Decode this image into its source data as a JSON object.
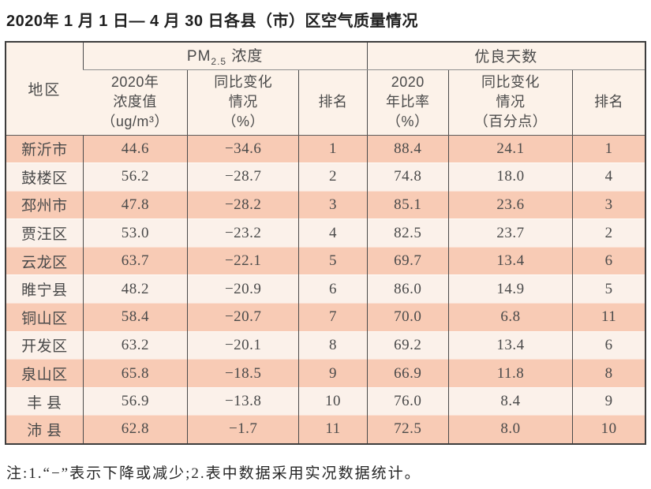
{
  "title": "2020年 1 月 1 日— 4 月 30 日各县（市）区空气质量情况",
  "table": {
    "region_header": "地区",
    "pm_group": {
      "prefix": "PM",
      "sub": "2.5",
      "suffix": "浓度"
    },
    "good_days_group": "优良天数",
    "sub_headers": [
      "2020年\n浓度值\n（ug/m³）",
      "同比变化\n情况\n（%）",
      "排名",
      "2020\n年比率\n（%）",
      "同比变化\n情况\n（百分点）",
      "排名"
    ],
    "rows": [
      [
        "新沂市",
        "44.6",
        "−34.6",
        "1",
        "88.4",
        "24.1",
        "1"
      ],
      [
        "鼓楼区",
        "56.2",
        "−28.7",
        "2",
        "74.8",
        "18.0",
        "4"
      ],
      [
        "邳州市",
        "47.8",
        "−28.2",
        "3",
        "85.1",
        "23.6",
        "3"
      ],
      [
        "贾汪区",
        "53.0",
        "−23.2",
        "4",
        "82.5",
        "23.7",
        "2"
      ],
      [
        "云龙区",
        "63.7",
        "−22.1",
        "5",
        "69.7",
        "13.4",
        "6"
      ],
      [
        "睢宁县",
        "48.2",
        "−20.9",
        "6",
        "86.0",
        "14.9",
        "5"
      ],
      [
        "铜山区",
        "58.4",
        "−20.7",
        "7",
        "70.0",
        "6.8",
        "11"
      ],
      [
        "开发区",
        "63.2",
        "−20.1",
        "8",
        "69.2",
        "13.4",
        "6"
      ],
      [
        "泉山区",
        "65.8",
        "−18.5",
        "9",
        "66.9",
        "11.8",
        "8"
      ],
      [
        "丰 县",
        "56.9",
        "−13.8",
        "10",
        "76.0",
        "8.4",
        "9"
      ],
      [
        "沛 县",
        "62.8",
        "−1.7",
        "11",
        "72.5",
        "8.0",
        "10"
      ]
    ]
  },
  "note": "注:1.“−”表示下降或减少;2.表中数据采用实况数据统计。",
  "colors": {
    "row_odd": "#f8cbb5",
    "row_even": "#fbf1ea",
    "header_bg": "#fcf2e9",
    "border_dark": "#3d3d3d",
    "border_inner": "#4a4a4a",
    "text": "#4a4a4a"
  }
}
